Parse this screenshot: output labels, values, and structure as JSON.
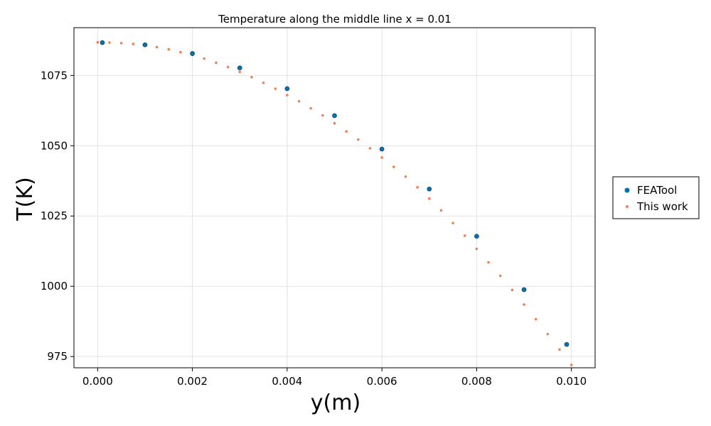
{
  "chart_data": {
    "type": "scatter",
    "title": "Temperature along the middle line x = 0.01",
    "xlabel": "y(m)",
    "ylabel": "T(K)",
    "xlim": [
      -0.0005,
      0.0105
    ],
    "ylim": [
      971,
      1092
    ],
    "x_ticks": [
      {
        "value": 0.0,
        "label": "0.000"
      },
      {
        "value": 0.002,
        "label": "0.002"
      },
      {
        "value": 0.004,
        "label": "0.004"
      },
      {
        "value": 0.006,
        "label": "0.006"
      },
      {
        "value": 0.008,
        "label": "0.008"
      },
      {
        "value": 0.01,
        "label": "0.010"
      }
    ],
    "y_ticks": [
      {
        "value": 975,
        "label": "975"
      },
      {
        "value": 1000,
        "label": "1000"
      },
      {
        "value": 1025,
        "label": "1025"
      },
      {
        "value": 1050,
        "label": "1050"
      },
      {
        "value": 1075,
        "label": "1075"
      }
    ],
    "grid": true,
    "legend_position": "right",
    "series": [
      {
        "name": "FEATool",
        "color": "#0072b2",
        "marker": "circle",
        "x": [
          0.0001,
          0.001,
          0.002,
          0.003,
          0.004,
          0.005,
          0.006,
          0.007,
          0.008,
          0.009,
          0.0099
        ],
        "y": [
          1086.7,
          1085.9,
          1082.8,
          1077.7,
          1070.3,
          1060.7,
          1048.8,
          1034.6,
          1017.8,
          998.8,
          979.3
        ]
      },
      {
        "name": "This work",
        "color": "#f07f57",
        "marker": "dot",
        "x": [
          0.0,
          0.00025,
          0.0005,
          0.00075,
          0.001,
          0.00125,
          0.0015,
          0.00175,
          0.002,
          0.00225,
          0.0025,
          0.00275,
          0.003,
          0.00325,
          0.0035,
          0.00375,
          0.004,
          0.00425,
          0.0045,
          0.00475,
          0.005,
          0.00525,
          0.0055,
          0.00575,
          0.006,
          0.00625,
          0.0065,
          0.00675,
          0.007,
          0.00725,
          0.0075,
          0.00775,
          0.008,
          0.00825,
          0.0085,
          0.00875,
          0.009,
          0.00925,
          0.0095,
          0.00975,
          0.01
        ],
        "y": [
          1086.8,
          1086.7,
          1086.5,
          1086.2,
          1085.7,
          1085.1,
          1084.3,
          1083.3,
          1082.3,
          1081.0,
          1079.5,
          1078.0,
          1076.3,
          1074.4,
          1072.4,
          1070.3,
          1068.0,
          1065.8,
          1063.3,
          1060.8,
          1058.0,
          1055.1,
          1052.2,
          1049.1,
          1045.8,
          1042.5,
          1039.0,
          1035.2,
          1031.2,
          1027.0,
          1022.5,
          1018.0,
          1013.3,
          1008.5,
          1003.7,
          998.7,
          993.5,
          988.3,
          983.0,
          977.5,
          972.0
        ]
      }
    ]
  }
}
